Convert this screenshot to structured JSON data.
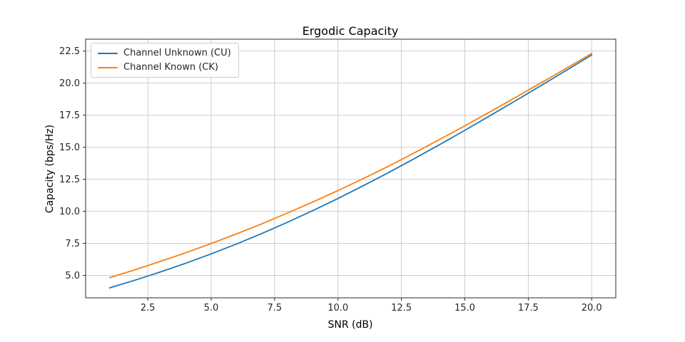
{
  "chart_data": {
    "type": "line",
    "title": "Ergodic Capacity",
    "xlabel": "SNR (dB)",
    "ylabel": "Capacity (bps/Hz)",
    "x": [
      1,
      2,
      3,
      4,
      5,
      6,
      7,
      8,
      9,
      10,
      11,
      12,
      13,
      14,
      15,
      16,
      17,
      18,
      19,
      20
    ],
    "series": [
      {
        "name": "Channel Unknown (CU)",
        "color": "#1f77b4",
        "values": [
          4.03,
          4.63,
          5.27,
          5.95,
          6.68,
          7.45,
          8.27,
          9.14,
          10.05,
          11.0,
          12.0,
          13.03,
          14.1,
          15.2,
          16.32,
          17.47,
          18.63,
          19.81,
          21.0,
          22.2
        ]
      },
      {
        "name": "Channel Known (CK)",
        "color": "#ff7f0e",
        "values": [
          4.83,
          5.44,
          6.09,
          6.77,
          7.49,
          8.24,
          9.03,
          9.86,
          10.72,
          11.62,
          12.56,
          13.53,
          14.55,
          15.6,
          16.67,
          17.77,
          18.89,
          20.02,
          21.16,
          22.32
        ]
      }
    ],
    "xlim": [
      0.05,
      20.95
    ],
    "ylim": [
      3.25,
      23.43
    ],
    "xticks": [
      2.5,
      5.0,
      7.5,
      10.0,
      12.5,
      15.0,
      17.5,
      20.0
    ],
    "yticks": [
      5.0,
      7.5,
      10.0,
      12.5,
      15.0,
      17.5,
      20.0,
      22.5
    ],
    "grid": true,
    "legend_position": "upper left",
    "grid_color": "#c8c8c8",
    "spine_color": "#2b2b2b",
    "line_width": 1.8
  }
}
